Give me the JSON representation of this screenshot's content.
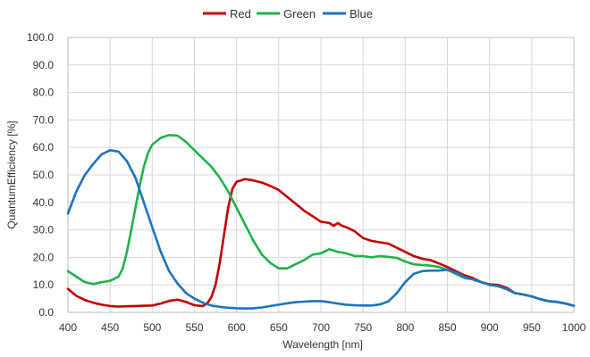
{
  "chart_data": {
    "type": "line",
    "title": "",
    "xlabel": "Wavelength  [nm]",
    "ylabel": "QuantumEfficiency  [%]",
    "xlim": [
      400,
      1000
    ],
    "ylim": [
      0,
      100
    ],
    "x_ticks": [
      "400",
      "450",
      "500",
      "550",
      "600",
      "650",
      "700",
      "750",
      "800",
      "850",
      "900",
      "950",
      "1000"
    ],
    "y_ticks": [
      "0.0",
      "10.0",
      "20.0",
      "30.0",
      "40.0",
      "50.0",
      "60.0",
      "70.0",
      "80.0",
      "90.0",
      "100.0"
    ],
    "grid": true,
    "legend_position": "top",
    "series": [
      {
        "name": "Red",
        "color": "#c00000",
        "points": [
          [
            400,
            8.5
          ],
          [
            410,
            6
          ],
          [
            420,
            4.5
          ],
          [
            430,
            3.5
          ],
          [
            440,
            2.8
          ],
          [
            450,
            2.3
          ],
          [
            460,
            2.1
          ],
          [
            470,
            2.2
          ],
          [
            480,
            2.3
          ],
          [
            490,
            2.4
          ],
          [
            500,
            2.5
          ],
          [
            510,
            3.2
          ],
          [
            520,
            4.2
          ],
          [
            530,
            4.6
          ],
          [
            540,
            3.8
          ],
          [
            550,
            2.6
          ],
          [
            560,
            2.3
          ],
          [
            565,
            3.2
          ],
          [
            570,
            5.5
          ],
          [
            575,
            10
          ],
          [
            580,
            18
          ],
          [
            585,
            28
          ],
          [
            590,
            38
          ],
          [
            595,
            45
          ],
          [
            600,
            47.5
          ],
          [
            610,
            48.5
          ],
          [
            620,
            48
          ],
          [
            630,
            47.2
          ],
          [
            640,
            46
          ],
          [
            650,
            44.5
          ],
          [
            660,
            42
          ],
          [
            670,
            39.5
          ],
          [
            680,
            37
          ],
          [
            690,
            35
          ],
          [
            700,
            33
          ],
          [
            710,
            32.5
          ],
          [
            715,
            31.5
          ],
          [
            720,
            32.5
          ],
          [
            725,
            31.5
          ],
          [
            730,
            31
          ],
          [
            740,
            29.5
          ],
          [
            750,
            27
          ],
          [
            760,
            26
          ],
          [
            770,
            25.5
          ],
          [
            780,
            25
          ],
          [
            790,
            23.5
          ],
          [
            800,
            22
          ],
          [
            810,
            20.5
          ],
          [
            820,
            19.5
          ],
          [
            830,
            19
          ],
          [
            840,
            17.8
          ],
          [
            850,
            16.5
          ],
          [
            860,
            15
          ],
          [
            870,
            13.5
          ],
          [
            880,
            12.5
          ],
          [
            890,
            11
          ],
          [
            900,
            10.2
          ],
          [
            910,
            10
          ],
          [
            920,
            9
          ],
          [
            930,
            7
          ],
          [
            940,
            6.5
          ],
          [
            950,
            5.8
          ],
          [
            960,
            4.8
          ],
          [
            970,
            4.1
          ],
          [
            980,
            3.8
          ],
          [
            990,
            3.2
          ],
          [
            1000,
            2.4
          ]
        ]
      },
      {
        "name": "Green",
        "color": "#22b14c",
        "points": [
          [
            400,
            15
          ],
          [
            410,
            13
          ],
          [
            420,
            11
          ],
          [
            430,
            10.3
          ],
          [
            440,
            11
          ],
          [
            450,
            11.5
          ],
          [
            460,
            13
          ],
          [
            465,
            16
          ],
          [
            470,
            22
          ],
          [
            475,
            30
          ],
          [
            480,
            38
          ],
          [
            485,
            46
          ],
          [
            490,
            53
          ],
          [
            495,
            58
          ],
          [
            500,
            61
          ],
          [
            510,
            63.5
          ],
          [
            520,
            64.5
          ],
          [
            530,
            64.3
          ],
          [
            540,
            62
          ],
          [
            550,
            59
          ],
          [
            560,
            56
          ],
          [
            570,
            53
          ],
          [
            580,
            49
          ],
          [
            590,
            44
          ],
          [
            600,
            38
          ],
          [
            610,
            32
          ],
          [
            620,
            26
          ],
          [
            630,
            21
          ],
          [
            640,
            18
          ],
          [
            650,
            16
          ],
          [
            660,
            16
          ],
          [
            670,
            17.5
          ],
          [
            680,
            19
          ],
          [
            690,
            21
          ],
          [
            700,
            21.5
          ],
          [
            710,
            23
          ],
          [
            720,
            22
          ],
          [
            730,
            21.5
          ],
          [
            740,
            20.5
          ],
          [
            750,
            20.5
          ],
          [
            760,
            20
          ],
          [
            770,
            20.5
          ],
          [
            780,
            20.2
          ],
          [
            790,
            19.8
          ],
          [
            800,
            18.5
          ],
          [
            810,
            17.5
          ],
          [
            820,
            17.2
          ],
          [
            830,
            17
          ],
          [
            840,
            16.5
          ],
          [
            850,
            15.5
          ],
          [
            860,
            14
          ],
          [
            870,
            12.5
          ],
          [
            880,
            12
          ],
          [
            890,
            11
          ],
          [
            900,
            10
          ],
          [
            910,
            9.5
          ],
          [
            920,
            8.5
          ],
          [
            930,
            7
          ],
          [
            940,
            6.5
          ],
          [
            950,
            5.8
          ],
          [
            960,
            4.8
          ],
          [
            970,
            4.1
          ],
          [
            980,
            3.8
          ],
          [
            990,
            3.2
          ],
          [
            1000,
            2.4
          ]
        ]
      },
      {
        "name": "Blue",
        "color": "#1e73be",
        "points": [
          [
            400,
            36
          ],
          [
            410,
            44
          ],
          [
            420,
            50
          ],
          [
            430,
            54
          ],
          [
            440,
            57.5
          ],
          [
            450,
            59
          ],
          [
            460,
            58.5
          ],
          [
            470,
            55
          ],
          [
            480,
            49
          ],
          [
            490,
            40
          ],
          [
            500,
            31
          ],
          [
            510,
            22
          ],
          [
            520,
            15
          ],
          [
            530,
            10.5
          ],
          [
            540,
            7
          ],
          [
            550,
            5
          ],
          [
            560,
            3.5
          ],
          [
            570,
            2.5
          ],
          [
            580,
            2
          ],
          [
            590,
            1.7
          ],
          [
            600,
            1.5
          ],
          [
            610,
            1.4
          ],
          [
            620,
            1.5
          ],
          [
            630,
            1.8
          ],
          [
            640,
            2.3
          ],
          [
            650,
            2.8
          ],
          [
            660,
            3.3
          ],
          [
            670,
            3.7
          ],
          [
            680,
            3.9
          ],
          [
            690,
            4.1
          ],
          [
            700,
            4.1
          ],
          [
            710,
            3.7
          ],
          [
            720,
            3.2
          ],
          [
            730,
            2.8
          ],
          [
            740,
            2.6
          ],
          [
            750,
            2.5
          ],
          [
            760,
            2.5
          ],
          [
            770,
            2.9
          ],
          [
            780,
            4
          ],
          [
            790,
            7
          ],
          [
            800,
            11
          ],
          [
            810,
            14
          ],
          [
            820,
            15
          ],
          [
            830,
            15.2
          ],
          [
            840,
            15.2
          ],
          [
            850,
            15.5
          ],
          [
            860,
            14.5
          ],
          [
            870,
            13
          ],
          [
            880,
            12
          ],
          [
            890,
            11
          ],
          [
            900,
            10
          ],
          [
            910,
            9.5
          ],
          [
            920,
            8.5
          ],
          [
            930,
            7
          ],
          [
            940,
            6.5
          ],
          [
            950,
            5.8
          ],
          [
            960,
            4.8
          ],
          [
            970,
            4.1
          ],
          [
            980,
            3.8
          ],
          [
            990,
            3.2
          ],
          [
            1000,
            2.4
          ]
        ]
      }
    ]
  }
}
